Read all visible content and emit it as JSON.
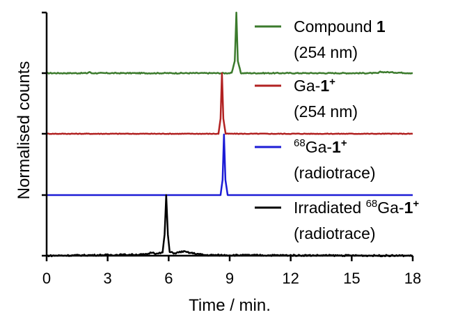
{
  "chart_data": {
    "type": "line",
    "xlabel": "Time / min.",
    "ylabel": "Normalised counts",
    "xlim": [
      0,
      18
    ],
    "xticks": [
      0,
      3,
      6,
      9,
      12,
      15,
      18
    ],
    "xtick_labels": [
      "0",
      "3",
      "6",
      "9",
      "12",
      "15",
      "18"
    ],
    "stacked_offset_lanes": 4,
    "grid": false,
    "legend_position": "right, beside each trace",
    "series": [
      {
        "name": "Compound 1 (254 nm)",
        "legend_lines": [
          [
            "Compound ",
            "1",
            "",
            ""
          ],
          [
            "(254 nm)",
            "",
            "",
            ""
          ]
        ],
        "color": "#3b7a2c",
        "lane": 3,
        "baseline_noise": 0.008,
        "x": [
          0,
          2.0,
          2.1,
          2.2,
          9.1,
          9.25,
          9.33,
          9.4,
          9.55,
          16.3,
          16.4,
          18
        ],
        "y": [
          0,
          0,
          0.02,
          0,
          0,
          0.2,
          1.0,
          0.2,
          0,
          0,
          0.02,
          0
        ]
      },
      {
        "name": "Ga-1+ (254 nm)",
        "legend_lines": [
          [
            "Ga-",
            "1",
            "+",
            ""
          ],
          [
            "(254 nm)",
            "",
            "",
            ""
          ]
        ],
        "color": "#b22222",
        "lane": 2,
        "baseline_noise": 0.005,
        "x": [
          0,
          8.45,
          8.55,
          8.62,
          8.69,
          8.8,
          18
        ],
        "y": [
          0,
          0,
          0.25,
          1.0,
          0.25,
          0,
          0
        ]
      },
      {
        "name": "68Ga-1+ (radiotrace)",
        "legend_lines": [
          [
            "Ga-",
            "1",
            "+",
            "68"
          ],
          [
            "(radiotrace)",
            "",
            "",
            ""
          ]
        ],
        "color": "#1c1cd6",
        "lane": 1,
        "baseline_noise": 0,
        "x": [
          0,
          8.55,
          8.65,
          8.72,
          8.79,
          8.9,
          18
        ],
        "y": [
          0,
          0,
          0.25,
          1.0,
          0.25,
          0,
          0
        ]
      },
      {
        "name": "Irradiated 68Ga-1+ (radiotrace)",
        "legend_lines": [
          [
            "Irradiated ",
            "Ga-",
            "+",
            "68"
          ],
          [
            "(radiotrace)",
            "",
            "",
            ""
          ]
        ],
        "color": "#000000",
        "lane": 0,
        "baseline_noise": 0.012,
        "x": [
          0,
          4.9,
          5.2,
          5.4,
          5.7,
          5.8,
          5.88,
          5.96,
          6.05,
          6.3,
          6.7,
          7.0,
          7.4,
          7.8,
          18
        ],
        "y": [
          0,
          0.02,
          0.06,
          0.03,
          0.05,
          0.35,
          1.0,
          0.35,
          0.06,
          0.04,
          0.07,
          0.05,
          0.03,
          0.01,
          0
        ]
      }
    ]
  }
}
